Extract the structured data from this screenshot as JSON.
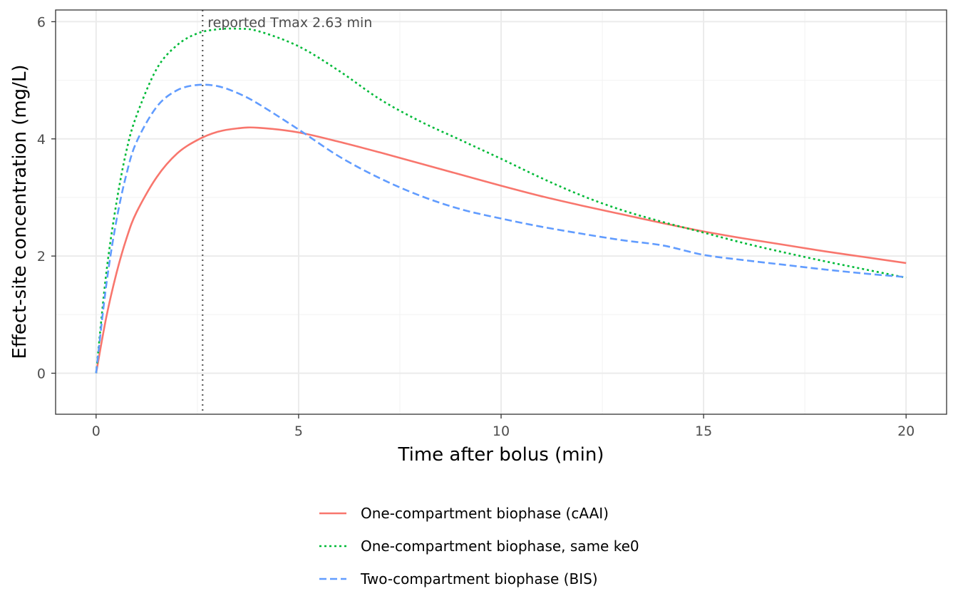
{
  "chart_data": {
    "type": "line",
    "title": "",
    "xlabel": "Time after bolus (min)",
    "ylabel": "Effect-site concentration (mg/L)",
    "xlim": [
      -1,
      21
    ],
    "ylim": [
      -0.7,
      6.2
    ],
    "x_ticks": [
      0,
      5,
      10,
      15,
      20
    ],
    "y_ticks": [
      0,
      2,
      4,
      6
    ],
    "grid": true,
    "legend_position": "bottom",
    "annotation": {
      "x": 2.63,
      "text": "reported Tmax 2.63 min",
      "line_style": "dotted",
      "color": "#595959"
    },
    "series": [
      {
        "name": "One-compartment biophase (cAAI)",
        "color": "#F8766D",
        "dash": "solid",
        "x": [
          0,
          0.25,
          0.5,
          0.75,
          1,
          1.5,
          2,
          2.5,
          3,
          3.5,
          4,
          5,
          6,
          7,
          8,
          9,
          10,
          11,
          12,
          13,
          14,
          15,
          16,
          17,
          18,
          19,
          20
        ],
        "y": [
          0,
          0.95,
          1.7,
          2.3,
          2.75,
          3.35,
          3.75,
          3.98,
          4.12,
          4.18,
          4.19,
          4.11,
          3.95,
          3.77,
          3.58,
          3.39,
          3.2,
          3.02,
          2.86,
          2.71,
          2.56,
          2.42,
          2.3,
          2.19,
          2.08,
          1.98,
          1.88
        ]
      },
      {
        "name": "One-compartment biophase, same ke0",
        "color": "#00BA38",
        "dash": "dotted",
        "x": [
          0,
          0.25,
          0.5,
          0.75,
          1,
          1.5,
          2,
          2.5,
          3,
          3.5,
          4,
          5,
          6,
          7,
          8,
          9,
          10,
          11,
          12,
          13,
          14,
          15,
          16,
          17,
          18,
          19,
          20
        ],
        "y": [
          0,
          1.7,
          2.9,
          3.8,
          4.4,
          5.2,
          5.6,
          5.8,
          5.87,
          5.88,
          5.84,
          5.58,
          5.16,
          4.68,
          4.3,
          3.98,
          3.66,
          3.33,
          3.03,
          2.78,
          2.58,
          2.4,
          2.22,
          2.06,
          1.91,
          1.77,
          1.63
        ]
      },
      {
        "name": "Two-compartment biophase (BIS)",
        "color": "#619CFF",
        "dash": "dashed",
        "x": [
          0,
          0.25,
          0.5,
          0.75,
          1,
          1.5,
          2,
          2.5,
          3,
          3.5,
          4,
          5,
          6,
          7,
          8,
          9,
          10,
          11,
          12,
          13,
          14,
          15,
          16,
          17,
          18,
          19,
          20
        ],
        "y": [
          0,
          1.5,
          2.6,
          3.4,
          3.95,
          4.55,
          4.83,
          4.92,
          4.9,
          4.78,
          4.6,
          4.16,
          3.7,
          3.33,
          3.03,
          2.8,
          2.64,
          2.5,
          2.38,
          2.27,
          2.18,
          2.02,
          1.93,
          1.85,
          1.77,
          1.7,
          1.64
        ]
      }
    ]
  }
}
